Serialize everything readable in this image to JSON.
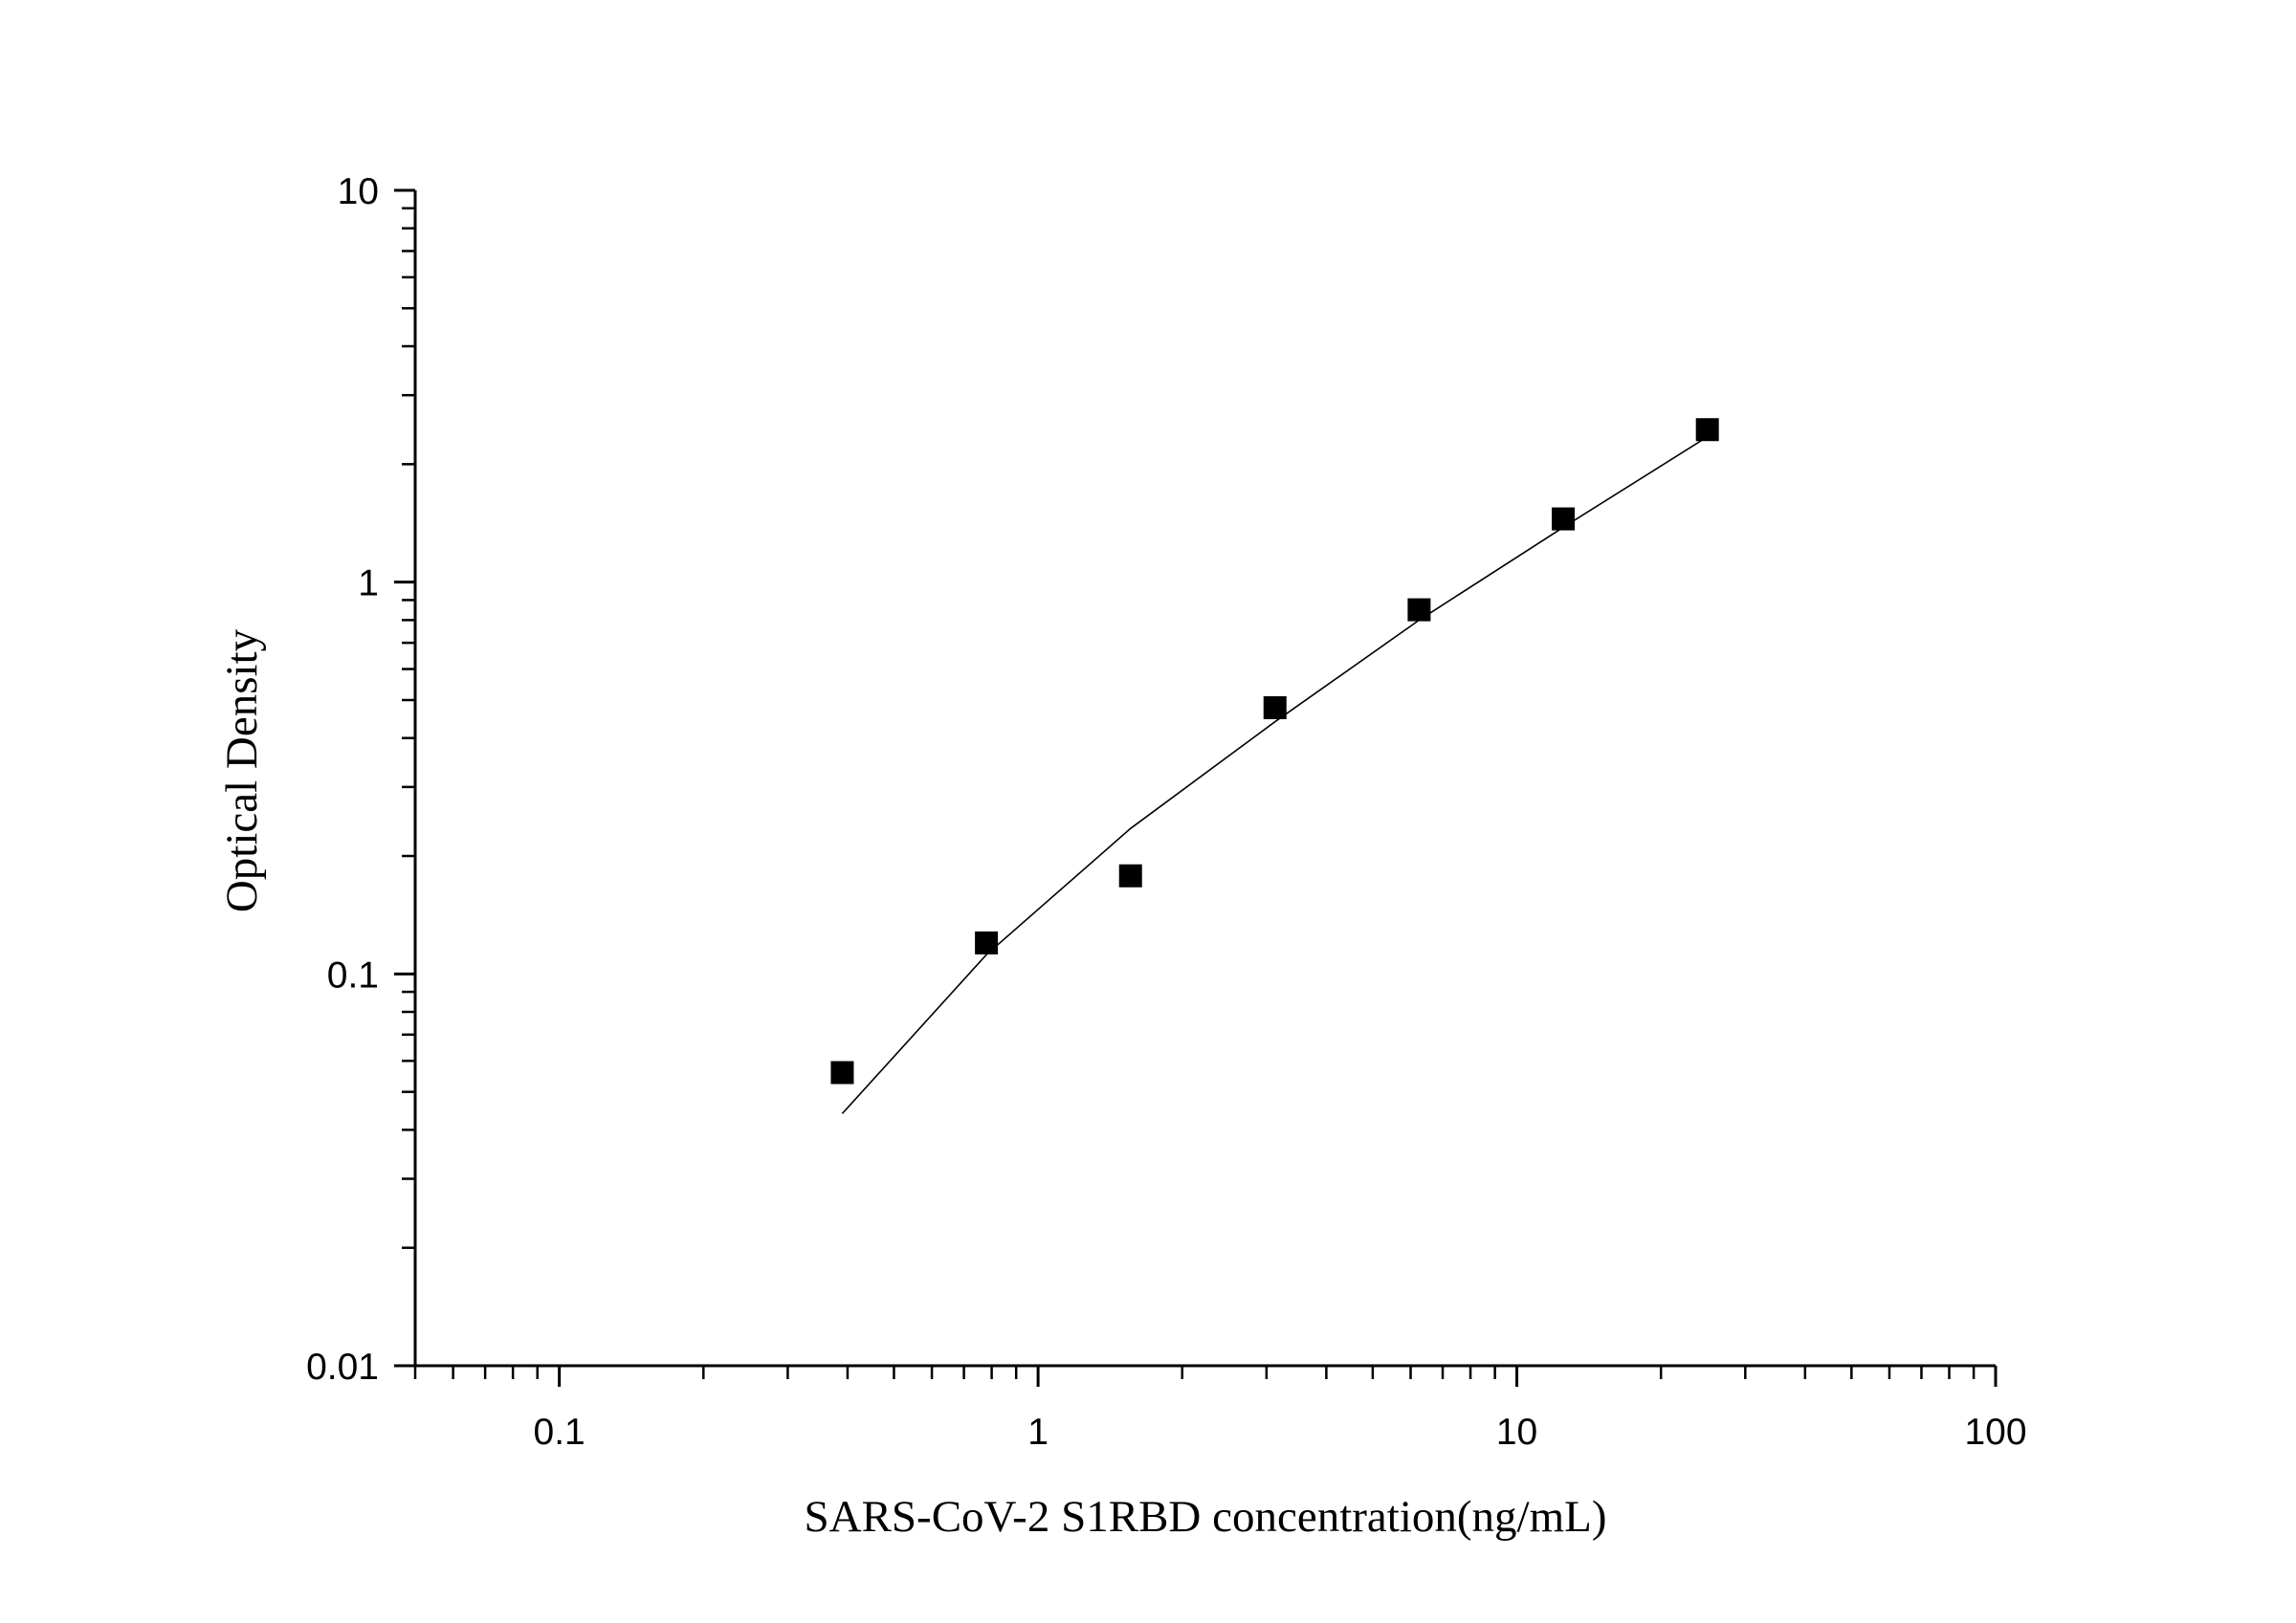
{
  "chart_data": {
    "type": "scatter",
    "title": "",
    "xlabel": "SARS-CoV-2 S1RBD concentration(ng/mL)",
    "ylabel": "Optical Density",
    "x_scale": "log",
    "y_scale": "log",
    "xlim": [
      0.05,
      100
    ],
    "ylim": [
      0.01,
      10
    ],
    "x_ticks": [
      0.1,
      1,
      10,
      100
    ],
    "x_tick_labels": [
      "0.1",
      "1",
      "10",
      "100"
    ],
    "y_ticks": [
      0.01,
      0.1,
      1,
      10
    ],
    "y_tick_labels": [
      "0.01",
      "0.1",
      "1",
      "10"
    ],
    "grid": false,
    "legend": "none",
    "colors": {
      "points": "#000000",
      "line": "#000000"
    },
    "series": [
      {
        "type": "scatter",
        "marker": "square",
        "x": [
          0.39,
          0.78,
          1.56,
          3.125,
          6.25,
          12.5,
          25
        ],
        "y": [
          0.056,
          0.12,
          0.178,
          0.478,
          0.85,
          1.45,
          2.45
        ]
      },
      {
        "type": "line",
        "x": [
          0.39,
          0.78,
          1.56,
          3.125,
          6.25,
          12.5,
          25
        ],
        "y": [
          0.044,
          0.112,
          0.235,
          0.44,
          0.8,
          1.38,
          2.35
        ]
      }
    ]
  }
}
